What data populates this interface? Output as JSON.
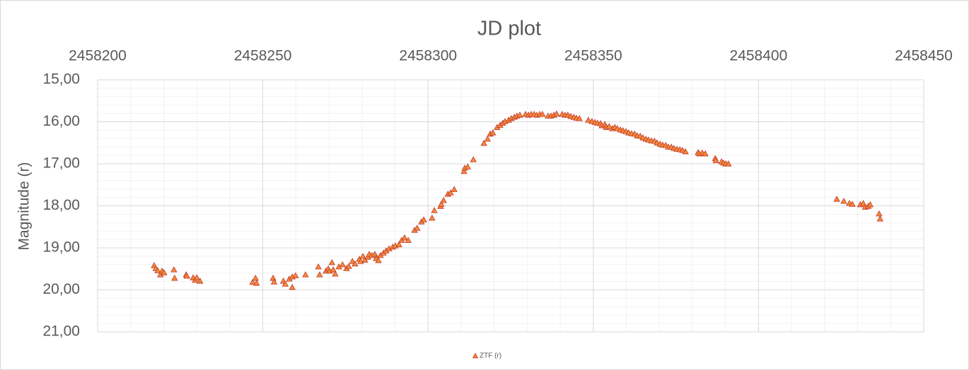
{
  "chart_data": {
    "type": "scatter",
    "title": "JD plot",
    "y_label": "Magnitude (r)",
    "x_axis_position": "top",
    "y_inverted": true,
    "grid": true,
    "legend": "bottom",
    "xlim": [
      2458200,
      2458450
    ],
    "xticks": [
      2458200,
      2458250,
      2458300,
      2458350,
      2458400,
      2458450
    ],
    "ylim": [
      15,
      21
    ],
    "yticks": [
      {
        "value": 15,
        "label": "15,00"
      },
      {
        "value": 16,
        "label": "16,00"
      },
      {
        "value": 17,
        "label": "17,00"
      },
      {
        "value": 18,
        "label": "18,00"
      },
      {
        "value": 19,
        "label": "19,00"
      },
      {
        "value": 20,
        "label": "20,00"
      },
      {
        "value": 21,
        "label": "21,00"
      }
    ],
    "series": [
      {
        "name": "ZTF (r)",
        "color": "#f4893a",
        "edge_color": "#c0392b",
        "x": [
          2458217.1,
          2458217.6,
          2458218.2,
          2458219.0,
          2458219.5,
          2458220.1,
          2458223.1,
          2458223.3,
          2458226.8,
          2458227.0,
          2458228.9,
          2458229.5,
          2458230.0,
          2458231.0,
          2458246.9,
          2458247.8,
          2458248.1,
          2458253.1,
          2458253.4,
          2458256.2,
          2458256.8,
          2458258.0,
          2458258.9,
          2458258.9,
          2458259.9,
          2458262.9,
          2458266.8,
          2458267.2,
          2458269.1,
          2458269.8,
          2458270.2,
          2458270.9,
          2458271.3,
          2458271.9,
          2458273.0,
          2458274.1,
          2458275.3,
          2458276.0,
          2458277.1,
          2458277.9,
          2458279.2,
          2458279.6,
          2458280.3,
          2458280.9,
          2458281.8,
          2458282.2,
          2458283.0,
          2458283.9,
          2458284.3,
          2458285.0,
          2458285.6,
          2458286.5,
          2458287.3,
          2458288.2,
          2458289.3,
          2458290.1,
          2458291.2,
          2458292.0,
          2458292.9,
          2458294.0,
          2458295.9,
          2458296.7,
          2458298.0,
          2458298.7,
          2458301.2,
          2458301.9,
          2458303.8,
          2458304.0,
          2458304.7,
          2458306.0,
          2458306.8,
          2458307.9,
          2458310.9,
          2458311.1,
          2458312.0,
          2458313.7,
          2458316.9,
          2458318.0,
          2458318.8,
          2458319.6,
          2458320.9,
          2458321.8,
          2458322.6,
          2458323.3,
          2458324.4,
          2458325.2,
          2458326.1,
          2458326.9,
          2458327.8,
          2458329.5,
          2458330.4,
          2458331.2,
          2458332.1,
          2458332.9,
          2458333.8,
          2458334.6,
          2458336.3,
          2458337.2,
          2458338.1,
          2458338.9,
          2458340.6,
          2458341.5,
          2458342.3,
          2458343.2,
          2458344.1,
          2458344.9,
          2458345.8,
          2458348.5,
          2458349.6,
          2458350.5,
          2458351.3,
          2458352.2,
          2458352.6,
          2458353.5,
          2458353.9,
          2458354.8,
          2458355.8,
          2458356.5,
          2458357.3,
          2458358.2,
          2458359.0,
          2458359.9,
          2458360.7,
          2458361.6,
          2458362.5,
          2458363.3,
          2458364.2,
          2458365.0,
          2458365.9,
          2458366.7,
          2458367.6,
          2458368.5,
          2458369.3,
          2458370.2,
          2458371.0,
          2458371.9,
          2458372.7,
          2458373.6,
          2458374.4,
          2458375.3,
          2458376.2,
          2458377.0,
          2458377.9,
          2458381.7,
          2458382.1,
          2458383.0,
          2458383.9,
          2458386.9,
          2458387.1,
          2458388.8,
          2458389.4,
          2458390.1,
          2458390.9,
          2458423.7,
          2458425.8,
          2458427.5,
          2458428.4,
          2458430.8,
          2458431.7,
          2458432.3,
          2458433.2,
          2458433.8,
          2458436.5,
          2458436.8
        ],
        "values": [
          19.42,
          19.49,
          19.54,
          19.64,
          19.55,
          19.59,
          19.52,
          19.72,
          19.64,
          19.67,
          19.71,
          19.77,
          19.71,
          19.79,
          19.82,
          19.72,
          19.84,
          19.72,
          19.81,
          19.79,
          19.86,
          19.74,
          19.94,
          19.69,
          19.66,
          19.64,
          19.45,
          19.64,
          19.55,
          19.5,
          19.55,
          19.35,
          19.52,
          19.62,
          19.45,
          19.4,
          19.49,
          19.44,
          19.32,
          19.38,
          19.27,
          19.32,
          19.2,
          19.29,
          19.22,
          19.15,
          19.18,
          19.15,
          19.25,
          19.3,
          19.18,
          19.12,
          19.07,
          19.02,
          18.98,
          18.95,
          18.92,
          18.82,
          18.76,
          18.82,
          18.58,
          18.53,
          18.38,
          18.33,
          18.29,
          18.11,
          18.01,
          17.96,
          17.87,
          17.72,
          17.69,
          17.61,
          17.18,
          17.1,
          17.07,
          16.9,
          16.51,
          16.41,
          16.29,
          16.26,
          16.13,
          16.08,
          16.03,
          15.99,
          15.96,
          15.92,
          15.89,
          15.86,
          15.84,
          15.82,
          15.84,
          15.82,
          15.82,
          15.84,
          15.82,
          15.82,
          15.86,
          15.86,
          15.84,
          15.81,
          15.82,
          15.84,
          15.84,
          15.87,
          15.89,
          15.91,
          15.92,
          15.96,
          15.99,
          16.01,
          16.03,
          16.04,
          16.09,
          16.06,
          16.13,
          16.11,
          16.16,
          16.13,
          16.16,
          16.19,
          16.21,
          16.23,
          16.26,
          16.28,
          16.29,
          16.33,
          16.34,
          16.38,
          16.41,
          16.43,
          16.45,
          16.46,
          16.5,
          16.53,
          16.55,
          16.56,
          16.6,
          16.6,
          16.63,
          16.65,
          16.66,
          16.68,
          16.71,
          16.73,
          16.76,
          16.74,
          16.76,
          16.87,
          16.92,
          16.95,
          16.98,
          17.0,
          17.0,
          17.84,
          17.89,
          17.94,
          17.96,
          17.97,
          17.94,
          18.03,
          18.01,
          17.97,
          18.19,
          18.31
        ]
      }
    ]
  }
}
